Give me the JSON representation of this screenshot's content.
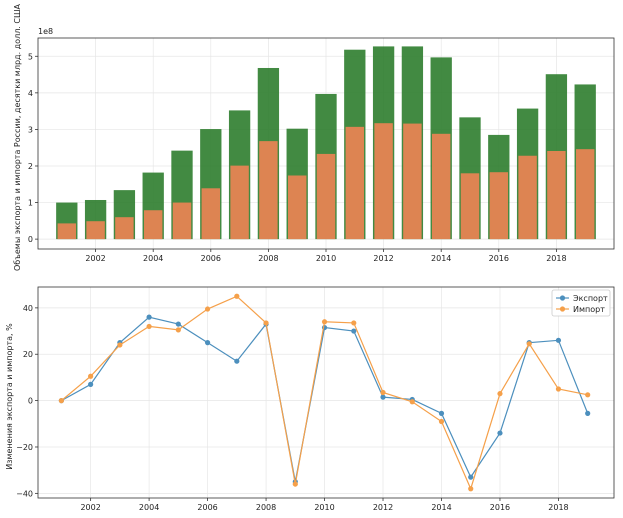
{
  "chart_data": [
    {
      "type": "bar",
      "x": [
        2001,
        2002,
        2003,
        2004,
        2005,
        2006,
        2007,
        2008,
        2009,
        2010,
        2011,
        2012,
        2013,
        2014,
        2015,
        2016,
        2017,
        2018,
        2019
      ],
      "series": [
        {
          "values": [
            1.0,
            1.07,
            1.34,
            1.82,
            2.42,
            3.01,
            3.52,
            4.68,
            3.02,
            3.97,
            5.18,
            5.27,
            5.27,
            4.97,
            3.33,
            2.85,
            3.57,
            4.51,
            4.23
          ],
          "color": "#2e7d2e"
        },
        {
          "values": [
            0.43,
            0.49,
            0.6,
            0.79,
            1.0,
            1.39,
            2.01,
            2.68,
            1.74,
            2.33,
            3.07,
            3.17,
            3.16,
            2.88,
            1.8,
            1.83,
            2.28,
            2.41,
            2.46
          ],
          "color": "#dd8452"
        }
      ],
      "ylabel": "Объемы экспорта и импорта России, десятки млрд. долл. США",
      "scale_note": "1e8",
      "ylim": [
        -0.27,
        5.5
      ],
      "yticks": [
        0,
        1,
        2,
        3,
        4,
        5
      ],
      "xticks": [
        2002,
        2004,
        2006,
        2008,
        2010,
        2012,
        2014,
        2016,
        2018
      ],
      "xlim": [
        2000,
        2020
      ],
      "grid": true
    },
    {
      "type": "line",
      "x": [
        2001,
        2002,
        2003,
        2004,
        2005,
        2006,
        2007,
        2008,
        2009,
        2010,
        2011,
        2012,
        2013,
        2014,
        2015,
        2016,
        2017,
        2018,
        2019
      ],
      "series": [
        {
          "name": "Экспорт",
          "color": "#4c8fbd",
          "values": [
            0,
            7,
            25,
            36,
            33,
            25,
            17,
            33,
            -35,
            31.5,
            30,
            1.5,
            0.5,
            -5.5,
            -33,
            -14,
            25,
            26,
            -5.5
          ]
        },
        {
          "name": "Импорт",
          "color": "#f5a04a",
          "values": [
            0,
            10.5,
            24,
            32,
            30.5,
            39.5,
            45,
            33.5,
            -36,
            34,
            33.5,
            3.5,
            -0.5,
            -9,
            -38,
            3,
            24.5,
            5,
            2.5
          ]
        }
      ],
      "ylabel": "Изменения экспорта и импорта, %",
      "ylim": [
        -42,
        49
      ],
      "yticks": [
        -40,
        -20,
        0,
        20,
        40
      ],
      "xticks": [
        2002,
        2004,
        2006,
        2008,
        2010,
        2012,
        2014,
        2016,
        2018
      ],
      "xlim": [
        2000.2,
        2019.9
      ],
      "grid": true,
      "legend_position": "top-right"
    }
  ]
}
